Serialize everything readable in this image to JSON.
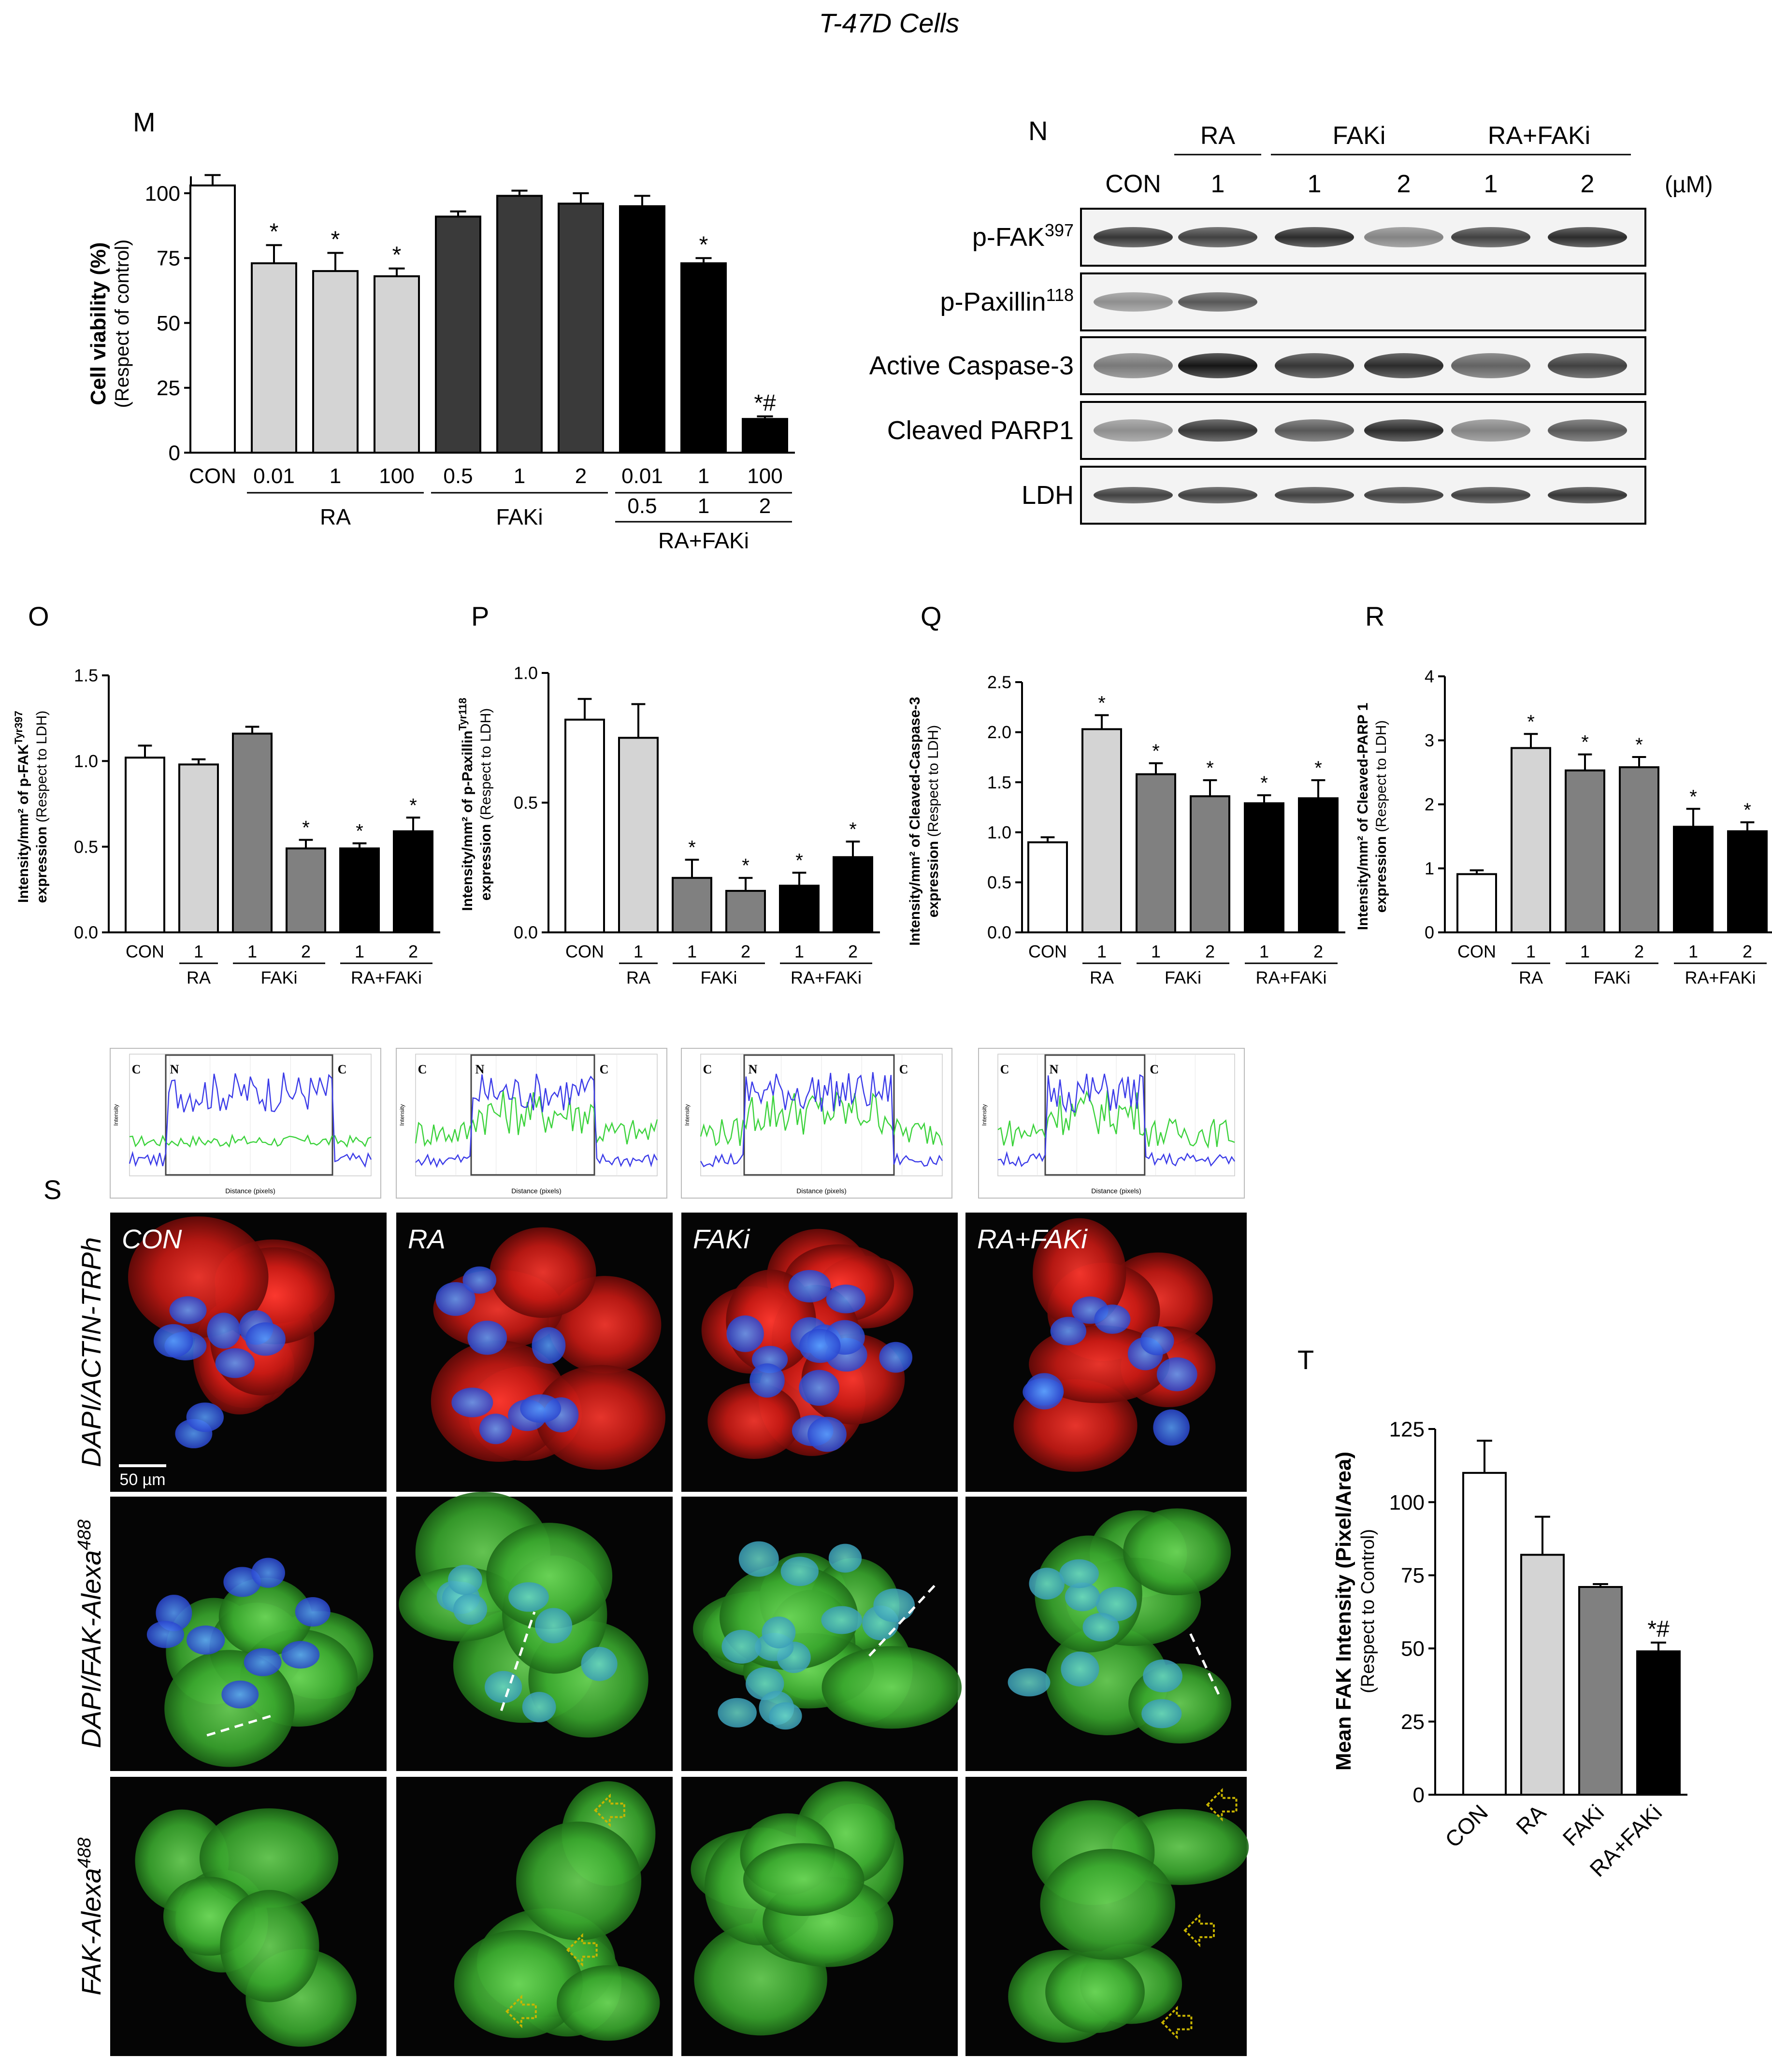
{
  "figure": {
    "title": "T-47D Cells",
    "colors": {
      "white": "#ffffff",
      "light_gray": "#d4d4d4",
      "mid_gray": "#808080",
      "dark_gray": "#3a3a3a",
      "black": "#000000",
      "profile_blue": "#3a3ae8",
      "profile_green": "#3ad23a",
      "actin_red": "#d8201c",
      "dapi_blue": "#2f4ed8",
      "fak_green": "#3fae35",
      "arrow_yellow": "#c8b400"
    }
  },
  "panels": {
    "M": {
      "letter": "M",
      "ylabel_bold": "Cell viability (%)",
      "ylabel_sub": "(Respect of  control)",
      "groups": [
        "RA",
        "FAKi",
        "RA+FAKi"
      ],
      "combo_second_row": [
        "0.5",
        "1",
        "2"
      ]
    },
    "N": {
      "letter": "N",
      "unit": "(µM)",
      "groups": [
        "RA",
        "FAKi",
        "RA+FAKi"
      ],
      "lanes": [
        "CON",
        "1",
        "1",
        "2",
        "1",
        "2"
      ],
      "blots": [
        {
          "label": "p-FAK",
          "sup": "397"
        },
        {
          "label": "p-Paxillin",
          "sup": "118"
        },
        {
          "label": "Active Caspase-3",
          "sup": ""
        },
        {
          "label": "Cleaved PARP1",
          "sup": ""
        },
        {
          "label": "LDH",
          "sup": ""
        }
      ]
    },
    "O": {
      "letter": "O",
      "ylabel_1": "Intensity/mm² of p-FAK",
      "ylabel_1_sup": "Tyr397",
      "ylabel_2": "expression",
      "ylabel_2_sub": " (Respect to LDH)"
    },
    "P": {
      "letter": "P",
      "ylabel_1": "Intensity/mm² of p-Paxillin",
      "ylabel_1_sup": "Tyr118",
      "ylabel_2": "expression",
      "ylabel_2_sub": " (Respect to LDH)"
    },
    "Q": {
      "letter": "Q",
      "ylabel_1": "Intensity/mm² of Cleaved-Caspase-3",
      "ylabel_1_sup": "",
      "ylabel_2": "expression",
      "ylabel_2_sub": " (Respect to LDH)"
    },
    "R": {
      "letter": "R",
      "ylabel_1": "Intensity/mm² of Cleaved-PARP 1",
      "ylabel_1_sup": "",
      "ylabel_2": "expression",
      "ylabel_2_sub": " (Respect to LDH)"
    },
    "S": {
      "letter": "S",
      "conditions": [
        "CON",
        "RA",
        "FAKi",
        "RA+FAKi"
      ],
      "row_labels": [
        {
          "text": "DAPI/ACTIN-TRPh",
          "sup": ""
        },
        {
          "text": "DAPI/FAK-Alexa",
          "sup": "488"
        },
        {
          "text": "FAK-Alexa",
          "sup": "488"
        }
      ],
      "scale_bar": "50 µm",
      "profile_xlabel": "Distance (pixels)",
      "profile_ylabel": "Intensity",
      "profile_region_labels": [
        "C",
        "N",
        "C"
      ]
    },
    "T": {
      "letter": "T",
      "ylabel_bold": "Mean FAK Intensity (Pixel/Area)",
      "ylabel_sub": "(Respect to Control)"
    }
  },
  "chart_data": [
    {
      "id": "M",
      "type": "bar",
      "categories": [
        "CON",
        "0.01",
        "1",
        "100",
        "0.5",
        "1",
        "2",
        "0.01",
        "1",
        "100"
      ],
      "values": [
        103,
        73,
        70,
        68,
        91,
        99,
        96,
        95,
        73,
        13
      ],
      "errors": [
        4,
        7,
        7,
        3,
        2,
        2,
        4,
        4,
        2,
        1
      ],
      "fills": [
        "white",
        "light_gray",
        "light_gray",
        "light_gray",
        "dark_gray",
        "dark_gray",
        "dark_gray",
        "black",
        "black",
        "black"
      ],
      "annotations": [
        "",
        "*",
        "*",
        "*",
        "",
        "",
        "",
        "",
        "*",
        "*#"
      ],
      "ylim": [
        0,
        100
      ],
      "yticks": [
        "0",
        "25",
        "50",
        "75",
        "100"
      ]
    },
    {
      "id": "O",
      "type": "bar",
      "categories": [
        "CON",
        "1",
        "1",
        "2",
        "1",
        "2"
      ],
      "group_labels": [
        "RA",
        "FAKi",
        "RA+FAKi"
      ],
      "values": [
        1.02,
        0.98,
        1.16,
        0.49,
        0.49,
        0.59
      ],
      "errors": [
        0.07,
        0.03,
        0.04,
        0.05,
        0.03,
        0.08
      ],
      "fills": [
        "white",
        "light_gray",
        "mid_gray",
        "mid_gray",
        "black",
        "black"
      ],
      "annotations": [
        "",
        "",
        "",
        "*",
        "*",
        "*"
      ],
      "ylim": [
        0,
        1.5
      ],
      "yticks": [
        "0.0",
        "0.5",
        "1.0",
        "1.5"
      ]
    },
    {
      "id": "P",
      "type": "bar",
      "categories": [
        "CON",
        "1",
        "1",
        "2",
        "1",
        "2"
      ],
      "group_labels": [
        "RA",
        "FAKi",
        "RA+FAKi"
      ],
      "values": [
        0.82,
        0.75,
        0.21,
        0.16,
        0.18,
        0.29
      ],
      "errors": [
        0.08,
        0.13,
        0.07,
        0.05,
        0.05,
        0.06
      ],
      "fills": [
        "white",
        "light_gray",
        "mid_gray",
        "mid_gray",
        "black",
        "black"
      ],
      "annotations": [
        "",
        "",
        "*",
        "*",
        "*",
        "*"
      ],
      "ylim": [
        0,
        1.0
      ],
      "yticks": [
        "0.0",
        "0.5",
        "1.0"
      ]
    },
    {
      "id": "Q",
      "type": "bar",
      "categories": [
        "CON",
        "1",
        "1",
        "2",
        "1",
        "2"
      ],
      "group_labels": [
        "RA",
        "FAKi",
        "RA+FAKi"
      ],
      "values": [
        0.9,
        2.03,
        1.58,
        1.36,
        1.29,
        1.34
      ],
      "errors": [
        0.05,
        0.14,
        0.11,
        0.16,
        0.08,
        0.18
      ],
      "fills": [
        "white",
        "light_gray",
        "mid_gray",
        "mid_gray",
        "black",
        "black"
      ],
      "annotations": [
        "",
        "*",
        "*",
        "*",
        "*",
        "*"
      ],
      "ylim": [
        0,
        2.5
      ],
      "yticks": [
        "0.0",
        "0.5",
        "1.0",
        "1.5",
        "2.0",
        "2.5"
      ]
    },
    {
      "id": "R",
      "type": "bar",
      "categories": [
        "CON",
        "1",
        "1",
        "2",
        "1",
        "2"
      ],
      "group_labels": [
        "RA",
        "FAKi",
        "RA+FAKi"
      ],
      "values": [
        0.91,
        2.88,
        2.53,
        2.58,
        1.65,
        1.58
      ],
      "errors": [
        0.06,
        0.22,
        0.25,
        0.16,
        0.28,
        0.14
      ],
      "fills": [
        "white",
        "light_gray",
        "mid_gray",
        "mid_gray",
        "black",
        "black"
      ],
      "annotations": [
        "",
        "*",
        "*",
        "*",
        "*",
        "*"
      ],
      "ylim": [
        0,
        4
      ],
      "yticks": [
        "0",
        "1",
        "2",
        "3",
        "4"
      ]
    },
    {
      "id": "T",
      "type": "bar",
      "categories": [
        "CON",
        "RA",
        "FAKi",
        "RA+FAKi"
      ],
      "values": [
        110,
        82,
        71,
        49
      ],
      "errors": [
        11,
        13,
        1,
        3
      ],
      "fills": [
        "white",
        "light_gray",
        "mid_gray",
        "black"
      ],
      "annotations": [
        "",
        "",
        "",
        "*#"
      ],
      "ylim": [
        0,
        125
      ],
      "yticks": [
        "0",
        "25",
        "50",
        "75",
        "100",
        "125"
      ]
    }
  ]
}
